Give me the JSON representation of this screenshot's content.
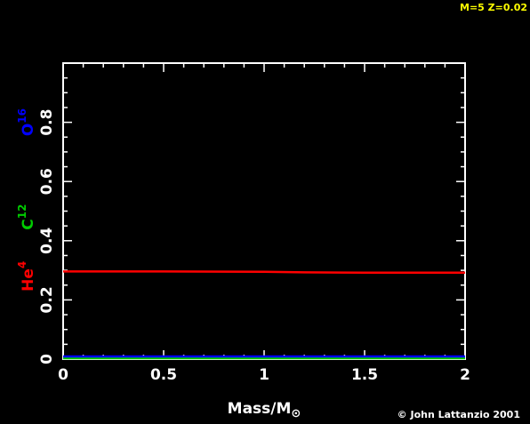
{
  "header": {
    "model_label": "M=5  Z=0.02"
  },
  "credit": "© John Lattanzio 2001",
  "chart_data": {
    "type": "line",
    "xlabel": "Mass/M",
    "xlabel_symbol": "⊙",
    "ylabel": "",
    "xlim": [
      0,
      2
    ],
    "ylim": [
      0,
      1
    ],
    "x_ticks": [
      0,
      0.5,
      1,
      1.5,
      2
    ],
    "x_tick_labels": [
      "0",
      "0.5",
      "1",
      "1.5",
      "2"
    ],
    "y_ticks": [
      0,
      0.2,
      0.4,
      0.6,
      0.8
    ],
    "y_tick_labels": [
      "0",
      "0.2",
      "0.4",
      "0.6",
      "0.8"
    ],
    "grid": false,
    "species_labels": [
      {
        "base": "He",
        "sup": "4",
        "color": "#ff0000"
      },
      {
        "base": "C",
        "sup": "12",
        "color": "#00cc00"
      },
      {
        "base": "O",
        "sup": "16",
        "color": "#0000ff"
      }
    ],
    "series": [
      {
        "name": "He4",
        "color": "#ff0000",
        "x": [
          0,
          0.5,
          1,
          1.2,
          1.5,
          2
        ],
        "values": [
          0.296,
          0.296,
          0.295,
          0.293,
          0.292,
          0.292
        ]
      },
      {
        "name": "C12",
        "color": "#00cc00",
        "x": [
          0,
          0.5,
          1,
          1.5,
          2
        ],
        "values": [
          0.003,
          0.003,
          0.003,
          0.003,
          0.003
        ]
      },
      {
        "name": "O16",
        "color": "#0000ff",
        "x": [
          0,
          0.5,
          1,
          1.5,
          2
        ],
        "values": [
          0.009,
          0.009,
          0.009,
          0.009,
          0.009
        ]
      }
    ]
  }
}
